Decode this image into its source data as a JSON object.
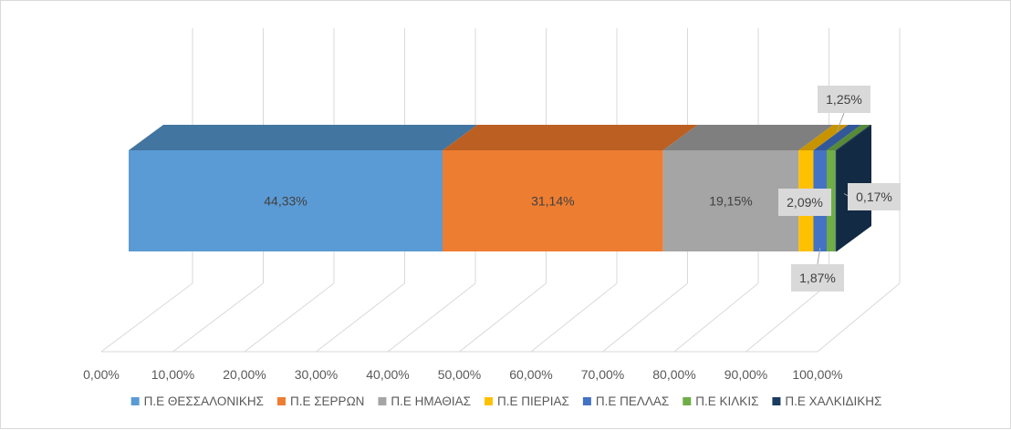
{
  "chart_data": {
    "type": "bar",
    "orientation": "horizontal",
    "stacking": "percent",
    "three_d": true,
    "categories": [
      ""
    ],
    "series": [
      {
        "name": "Π.Ε ΘΕΣΣΑΛΟΝΙΚΗΣ",
        "values": [
          44.33
        ],
        "label": "44,33%",
        "color": "#5b9bd5",
        "top": "#4275a0",
        "side": "#3a6691"
      },
      {
        "name": "Π.Ε ΣΕΡΡΩΝ",
        "values": [
          31.14
        ],
        "label": "31,14%",
        "color": "#ed7d31",
        "top": "#bb5f23",
        "side": "#a9541e"
      },
      {
        "name": "Π.Ε ΗΜΑΘΙΑΣ",
        "values": [
          19.15
        ],
        "label": "19,15%",
        "color": "#a5a5a5",
        "top": "#7f7f7f",
        "side": "#747474"
      },
      {
        "name": "Π.Ε ΠΙΕΡΙΑΣ",
        "values": [
          2.09
        ],
        "label": "2,09%",
        "color": "#ffc000",
        "top": "#c79400",
        "side": "#b88a00"
      },
      {
        "name": "Π.Ε ΠΕΛΛΑΣ",
        "values": [
          1.87
        ],
        "label": "1,87%",
        "color": "#4472c4",
        "top": "#335899",
        "side": "#2e4f8a"
      },
      {
        "name": "Π.Ε ΚΙΛΚΙΣ",
        "values": [
          1.25
        ],
        "label": "1,25%",
        "color": "#70ad47",
        "top": "#578a36",
        "side": "#4e7c30"
      },
      {
        "name": "Π.Ε ΧΑΛΚΙΔΙΚΗΣ",
        "values": [
          0.17
        ],
        "label": "0,17%",
        "color": "#1b3c61",
        "top": "#16324f",
        "side": "#122a43"
      }
    ],
    "xlim": [
      0,
      100
    ],
    "ticks": [
      "0,00%",
      "10,00%",
      "20,00%",
      "30,00%",
      "40,00%",
      "50,00%",
      "60,00%",
      "70,00%",
      "80,00%",
      "90,00%",
      "100,00%"
    ],
    "grid": true,
    "legend": "bottom"
  }
}
